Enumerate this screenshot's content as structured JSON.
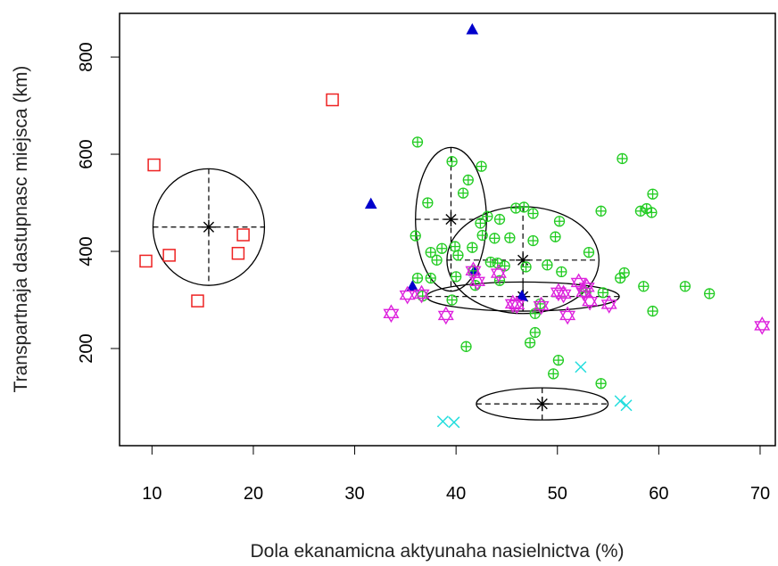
{
  "chart_data": {
    "type": "scatter",
    "xlabel": "Dola ekanamicna aktyunaha nasielnictva (%)",
    "ylabel": "Transpartnaja dastupnasc miejsca (km)",
    "xlim": [
      6.8,
      71.5
    ],
    "ylim": [
      0,
      890
    ],
    "xticks": [
      10,
      20,
      30,
      40,
      50,
      60,
      70
    ],
    "yticks": [
      200,
      400,
      600,
      800
    ],
    "grid": false,
    "legend": "none",
    "series": [
      {
        "marker": "open-square",
        "color": "#ee2222",
        "points": [
          [
            10.2,
            578
          ],
          [
            27.8,
            712
          ],
          [
            9.4,
            380
          ],
          [
            11.7,
            392
          ],
          [
            18.5,
            396
          ],
          [
            19.0,
            434
          ],
          [
            14.5,
            298
          ]
        ]
      },
      {
        "marker": "filled-triangle",
        "color": "#0000cc",
        "points": [
          [
            41.6,
            857
          ],
          [
            31.6,
            498
          ],
          [
            35.7,
            328
          ],
          [
            41.8,
            360
          ],
          [
            46.5,
            308
          ]
        ]
      },
      {
        "marker": "circle-plus",
        "color": "#22cc22",
        "points": [
          [
            36.2,
            625
          ],
          [
            56.4,
            591
          ],
          [
            39.6,
            585
          ],
          [
            42.5,
            575
          ],
          [
            41.2,
            547
          ],
          [
            40.7,
            520
          ],
          [
            59.4,
            518
          ],
          [
            37.2,
            500
          ],
          [
            46.7,
            491
          ],
          [
            45.9,
            489
          ],
          [
            54.3,
            483
          ],
          [
            58.2,
            483
          ],
          [
            58.8,
            488
          ],
          [
            59.3,
            480
          ],
          [
            47.6,
            478
          ],
          [
            43.1,
            472
          ],
          [
            44.3,
            466
          ],
          [
            50.2,
            462
          ],
          [
            42.4,
            458
          ],
          [
            36.0,
            432
          ],
          [
            42.6,
            433
          ],
          [
            43.8,
            427
          ],
          [
            45.3,
            428
          ],
          [
            49.8,
            430
          ],
          [
            47.6,
            422
          ],
          [
            39.9,
            410
          ],
          [
            41.6,
            408
          ],
          [
            38.6,
            406
          ],
          [
            37.5,
            398
          ],
          [
            53.1,
            398
          ],
          [
            40.2,
            392
          ],
          [
            43.4,
            378
          ],
          [
            38.1,
            382
          ],
          [
            44.1,
            376
          ],
          [
            44.8,
            370
          ],
          [
            46.9,
            368
          ],
          [
            49.0,
            372
          ],
          [
            41.7,
            360
          ],
          [
            50.4,
            358
          ],
          [
            56.6,
            356
          ],
          [
            56.2,
            345
          ],
          [
            40.0,
            348
          ],
          [
            37.5,
            345
          ],
          [
            36.2,
            345
          ],
          [
            41.9,
            330
          ],
          [
            44.3,
            340
          ],
          [
            62.6,
            328
          ],
          [
            65.0,
            313
          ],
          [
            58.5,
            328
          ],
          [
            52.8,
            316
          ],
          [
            54.5,
            315
          ],
          [
            36.7,
            308
          ],
          [
            39.6,
            300
          ],
          [
            48.3,
            292
          ],
          [
            59.4,
            277
          ],
          [
            47.8,
            272
          ],
          [
            47.8,
            233
          ],
          [
            47.3,
            212
          ],
          [
            41.0,
            204
          ],
          [
            50.1,
            176
          ],
          [
            49.6,
            148
          ],
          [
            54.3,
            128
          ]
        ]
      },
      {
        "marker": "star-of-david",
        "color": "#dd22dd",
        "points": [
          [
            33.6,
            272
          ],
          [
            35.2,
            310
          ],
          [
            36.6,
            312
          ],
          [
            39.0,
            268
          ],
          [
            41.7,
            360
          ],
          [
            42.1,
            338
          ],
          [
            44.2,
            355
          ],
          [
            45.6,
            292
          ],
          [
            46.0,
            290
          ],
          [
            48.4,
            288
          ],
          [
            50.1,
            316
          ],
          [
            50.6,
            312
          ],
          [
            51.0,
            268
          ],
          [
            52.1,
            336
          ],
          [
            52.6,
            316
          ],
          [
            52.9,
            326
          ],
          [
            53.2,
            297
          ],
          [
            55.1,
            291
          ],
          [
            70.2,
            247
          ]
        ]
      },
      {
        "marker": "x-cross",
        "color": "#22dddd",
        "points": [
          [
            38.7,
            50
          ],
          [
            39.8,
            48
          ],
          [
            52.3,
            162
          ],
          [
            56.2,
            92
          ],
          [
            56.8,
            83
          ]
        ]
      }
    ],
    "ellipses": [
      {
        "cx": 15.6,
        "cy": 450,
        "rx": 5.5,
        "ry": 120,
        "angle": 0
      },
      {
        "cx": 39.5,
        "cy": 466,
        "rx": 3.5,
        "ry": 148,
        "angle": 0
      },
      {
        "cx": 46.6,
        "cy": 382,
        "rx": 7.5,
        "ry": 110,
        "angle": 0
      },
      {
        "cx": 46.6,
        "cy": 307,
        "rx": 9.5,
        "ry": 30,
        "angle": 0
      },
      {
        "cx": 48.5,
        "cy": 86,
        "rx": 6.5,
        "ry": 33,
        "angle": 0
      }
    ]
  }
}
